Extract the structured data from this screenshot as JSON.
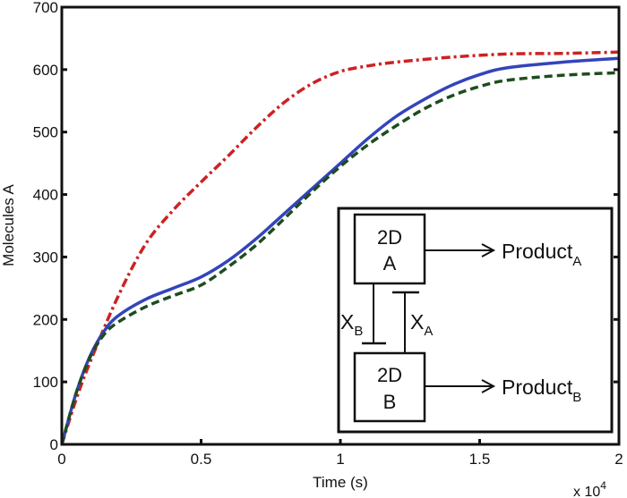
{
  "chart_data": {
    "type": "line",
    "title": "",
    "xlabel": "Time (s)",
    "ylabel": "Molecules A",
    "x_multiplier": "x 10",
    "x_multiplier_exp": "4",
    "xlim": [
      0,
      2
    ],
    "ylim": [
      0,
      700
    ],
    "xticks": [
      "0",
      "0.5",
      "1",
      "1.5",
      "2"
    ],
    "xtick_values": [
      0,
      0.5,
      1,
      1.5,
      2
    ],
    "yticks": [
      "0",
      "100",
      "200",
      "300",
      "400",
      "500",
      "600",
      "700"
    ],
    "ytick_values": [
      0,
      100,
      200,
      300,
      400,
      500,
      600,
      700
    ],
    "grid": false,
    "series": [
      {
        "color": "#cc2222",
        "style": "dash-dot",
        "x": [
          0,
          0.05,
          0.1,
          0.2,
          0.3,
          0.4,
          0.5,
          0.6,
          0.7,
          0.8,
          0.9,
          1.0,
          1.1,
          1.2,
          1.4,
          1.6,
          1.8,
          2.0
        ],
        "y": [
          0,
          70,
          130,
          235,
          320,
          375,
          420,
          463,
          508,
          548,
          578,
          597,
          606,
          612,
          620,
          625,
          626,
          628
        ]
      },
      {
        "color": "#3344bb",
        "style": "solid",
        "x": [
          0,
          0.05,
          0.1,
          0.15,
          0.2,
          0.3,
          0.4,
          0.5,
          0.6,
          0.7,
          0.8,
          0.9,
          1.0,
          1.1,
          1.2,
          1.3,
          1.4,
          1.5,
          1.6,
          1.8,
          2.0
        ],
        "y": [
          0,
          80,
          140,
          180,
          205,
          232,
          250,
          268,
          295,
          330,
          370,
          410,
          450,
          490,
          525,
          552,
          575,
          592,
          603,
          612,
          618
        ]
      },
      {
        "color": "#1d4d1d",
        "style": "dashed",
        "x": [
          0,
          0.05,
          0.1,
          0.15,
          0.2,
          0.3,
          0.4,
          0.5,
          0.6,
          0.7,
          0.8,
          0.9,
          1.0,
          1.1,
          1.2,
          1.3,
          1.4,
          1.5,
          1.6,
          1.8,
          2.0
        ],
        "y": [
          0,
          80,
          138,
          175,
          195,
          220,
          238,
          255,
          285,
          320,
          362,
          405,
          445,
          480,
          510,
          537,
          558,
          573,
          583,
          591,
          595
        ]
      }
    ],
    "inset": {
      "box_a_line1": "2D",
      "box_a_line2": "A",
      "box_b_line1": "2D",
      "box_b_line2": "B",
      "product_a": "Product",
      "product_a_sub": "A",
      "product_b": "Product",
      "product_b_sub": "B",
      "xb": "X",
      "xb_sub": "B",
      "xa": "X",
      "xa_sub": "A"
    }
  }
}
